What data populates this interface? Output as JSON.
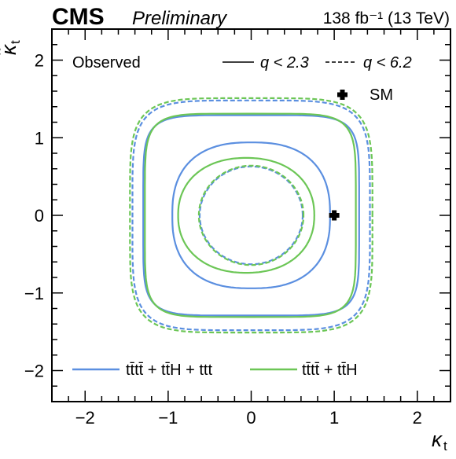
{
  "chart_data": {
    "type": "line",
    "experiment": "CMS",
    "status": "Preliminary",
    "lumi_text": "138 fb⁻¹ (13 TeV)",
    "xlabel": "κ",
    "xlabel_sub": "t",
    "ylabel": "κ̃",
    "ylabel_sub": "t",
    "xlim": [
      -2.4,
      2.4
    ],
    "ylim": [
      -2.4,
      2.4
    ],
    "xticks": [
      -2,
      -1,
      0,
      1,
      2
    ],
    "yticks": [
      -2,
      -1,
      0,
      1,
      2
    ],
    "xtick_labels": [
      "−2",
      "−1",
      "0",
      "1",
      "2"
    ],
    "ytick_labels": [
      "−2",
      "−1",
      "0",
      "1",
      "2"
    ],
    "grid": false,
    "legend_observed": "Observed",
    "legend_solid": "q < 2.3",
    "legend_dashed": "q < 6.2",
    "sm_point": {
      "label": "SM",
      "x": 1.0,
      "y": 0.0
    },
    "series": [
      {
        "name": "tt̄tt̄ + tt̄H + ttt",
        "color": "#5b8fe0",
        "contours": {
          "q23_outer": {
            "cx": 0.0,
            "cy": 0.0,
            "rx": 1.3,
            "ry": 1.29,
            "p": 6.0
          },
          "q23_inner": {
            "cx": 0.0,
            "cy": 0.0,
            "rx": 0.95,
            "ry": 0.94,
            "p": 2.5
          },
          "q62_outer": {
            "cx": 0.0,
            "cy": 0.0,
            "rx": 1.43,
            "ry": 1.48,
            "p": 5.0
          },
          "q62_inner": {
            "cx": 0.0,
            "cy": 0.0,
            "rx": 0.62,
            "ry": 0.63,
            "p": 2.0
          }
        }
      },
      {
        "name": "tt̄tt̄ + tt̄H",
        "color": "#6cc656",
        "contours": {
          "q23_outer": {
            "cx": -0.01,
            "cy": 0.0,
            "rx": 1.27,
            "ry": 1.31,
            "p": 6.0
          },
          "q23_inner": {
            "cx": -0.06,
            "cy": 0.0,
            "rx": 0.82,
            "ry": 0.74,
            "p": 2.2
          },
          "q62_outer": {
            "cx": 0.0,
            "cy": 0.0,
            "rx": 1.46,
            "ry": 1.51,
            "p": 5.0
          },
          "q62_inner": {
            "cx": 0.0,
            "cy": 0.0,
            "rx": 0.63,
            "ry": 0.64,
            "p": 2.0
          }
        }
      }
    ]
  }
}
